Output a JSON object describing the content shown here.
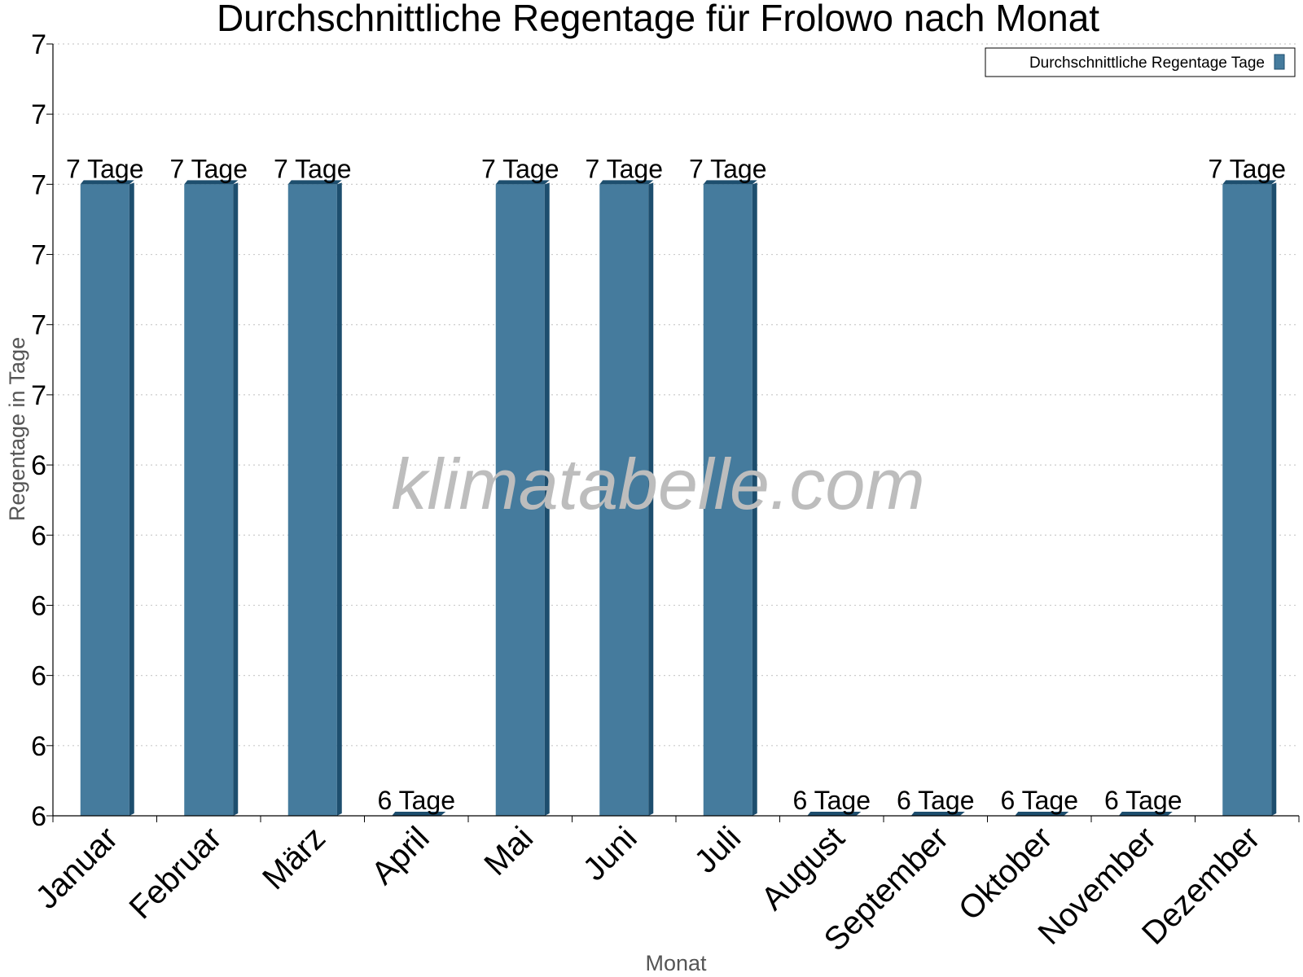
{
  "title": "Durchschnittliche Regentage für Frolowo nach Monat",
  "watermark": "klimatabelle.com",
  "colors": {
    "bar": "#457b9d",
    "bar_side": "#1d4e6e",
    "grid": "#cccccc",
    "axis": "#000000"
  },
  "chart_data": {
    "type": "bar",
    "title": "Durchschnittliche Regentage für Frolowo nach Monat",
    "xlabel": "Monat",
    "ylabel": "Regentage in Tage",
    "categories": [
      "Januar",
      "Februar",
      "März",
      "April",
      "Mai",
      "Juni",
      "Juli",
      "August",
      "September",
      "Oktober",
      "November",
      "Dezember"
    ],
    "series": [
      {
        "name": "Durchschnittliche Regentage Tage",
        "values": [
          6.9,
          6.9,
          6.9,
          6.0,
          6.9,
          6.9,
          6.9,
          6.0,
          6.0,
          6.0,
          6.0,
          6.9
        ],
        "labels": [
          "7 Tage",
          "7 Tage",
          "7 Tage",
          "6 Tage",
          "7 Tage",
          "7 Tage",
          "7 Tage",
          "6 Tage",
          "6 Tage",
          "6 Tage",
          "6 Tage",
          "7 Tage"
        ]
      }
    ],
    "ylim": [
      6.0,
      7.1
    ],
    "yticks": [
      6.0,
      6.1,
      6.2,
      6.3,
      6.4,
      6.5,
      6.6,
      6.7,
      6.8,
      6.9,
      7.0,
      7.1
    ],
    "ytick_labels": [
      "6",
      "6",
      "6",
      "6",
      "6",
      "6",
      "7",
      "7",
      "7",
      "7",
      "7",
      "7"
    ],
    "grid": true,
    "legend_position": "top-right"
  }
}
